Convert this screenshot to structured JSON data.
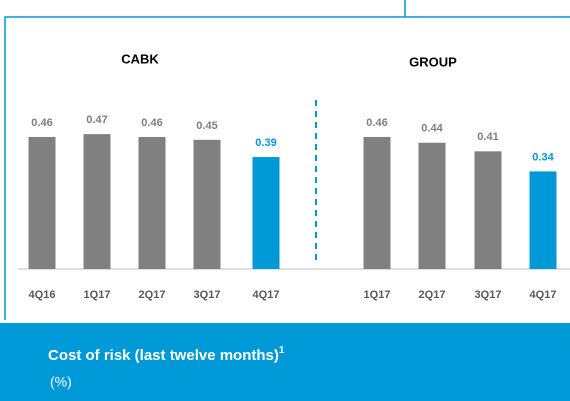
{
  "chart_data": [
    {
      "type": "bar",
      "title": "CABK",
      "categories": [
        "4Q16",
        "1Q17",
        "2Q17",
        "3Q17",
        "4Q17"
      ],
      "values": [
        0.46,
        0.47,
        0.46,
        0.45,
        0.39
      ],
      "colors": [
        "#808080",
        "#808080",
        "#808080",
        "#808080",
        "#0099d8"
      ]
    },
    {
      "type": "bar",
      "title": "GROUP",
      "categories": [
        "1Q17",
        "2Q17",
        "3Q17",
        "4Q17"
      ],
      "values": [
        0.46,
        0.44,
        0.41,
        0.34
      ],
      "colors": [
        "#808080",
        "#808080",
        "#808080",
        "#0099d8"
      ]
    }
  ],
  "footer": {
    "title": "Cost of risk (last twelve months)",
    "note_marker": "1",
    "unit": "(%)"
  }
}
